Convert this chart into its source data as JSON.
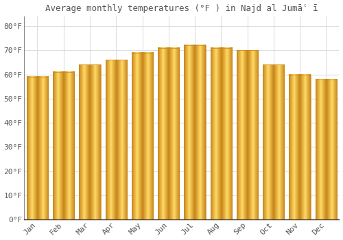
{
  "title": "Average monthly temperatures (°F ) in Najd al Jumāʿ ī",
  "months": [
    "Jan",
    "Feb",
    "Mar",
    "Apr",
    "May",
    "Jun",
    "Jul",
    "Aug",
    "Sep",
    "Oct",
    "Nov",
    "Dec"
  ],
  "values": [
    59,
    61,
    64,
    66,
    69,
    71,
    72,
    71,
    70,
    64,
    60,
    58
  ],
  "bar_color_center": "#FFD966",
  "bar_color_edge": "#F5A623",
  "bar_edge_color": "#C8861A",
  "yticks": [
    0,
    10,
    20,
    30,
    40,
    50,
    60,
    70,
    80
  ],
  "ylim": [
    0,
    84
  ],
  "background_color": "#FFFFFF",
  "grid_color": "#DDDDDD",
  "text_color": "#555555",
  "bar_width": 0.82,
  "title_fontsize": 9,
  "tick_fontsize": 8
}
